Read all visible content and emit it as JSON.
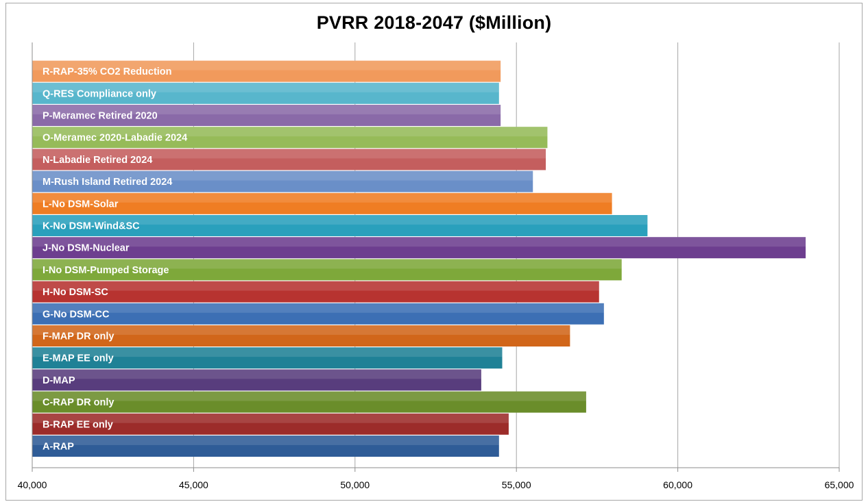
{
  "chart_data": {
    "type": "bar",
    "orientation": "horizontal",
    "title": "PVRR 2018-2047 ($Million)",
    "xlabel": "",
    "ylabel": "",
    "xlim": [
      40000,
      65000
    ],
    "xticks": [
      40000,
      45000,
      50000,
      55000,
      60000,
      65000
    ],
    "xtick_labels": [
      "40,000",
      "45,000",
      "50,000",
      "55,000",
      "60,000",
      "65,000"
    ],
    "grid": "vertical",
    "legend": "none",
    "categories": [
      "A-RAP",
      "B-RAP EE only",
      "C-RAP DR only",
      "D-MAP",
      "E-MAP EE only",
      "F-MAP DR only",
      "G-No DSM-CC",
      "H-No DSM-SC",
      "I-No DSM-Pumped Storage",
      "J-No DSM-Nuclear",
      "K-No DSM-Wind&SC",
      "L-No DSM-Solar",
      "M-Rush Island Retired 2024",
      "N-Labadie Retired 2024",
      "O-Meramec 2020-Labadie 2024",
      "P-Meramec Retired 2020",
      "Q-RES Compliance only",
      "R-RAP-35% CO2 Reduction"
    ],
    "values": [
      54450,
      54750,
      57150,
      53900,
      54550,
      56650,
      57700,
      57550,
      58250,
      63950,
      59050,
      57950,
      55500,
      55900,
      55950,
      54500,
      54450,
      54500
    ],
    "colors": [
      "#2f5c97",
      "#9c2c2a",
      "#6a8d2a",
      "#583d7d",
      "#1f8196",
      "#d1661a",
      "#3c6fb4",
      "#b73330",
      "#7ea83a",
      "#6d3e8f",
      "#2aa0bc",
      "#ef7d23",
      "#6a8fc8",
      "#c45e5e",
      "#96bb59",
      "#8a6aa8",
      "#58b6cc",
      "#f19a5c"
    ]
  }
}
